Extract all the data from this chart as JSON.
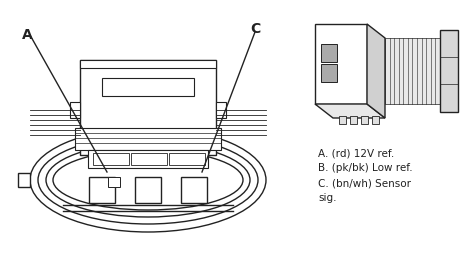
{
  "background_color": "#ffffff",
  "line_color": "#222222",
  "label_A": "A",
  "label_C": "C",
  "legend_lines": [
    "A. (rd) 12V ref.",
    "B. (pk/bk) Low ref.",
    "C. (bn/wh) Sensor",
    "sig."
  ],
  "figsize": [
    4.74,
    2.73
  ],
  "dpi": 100
}
